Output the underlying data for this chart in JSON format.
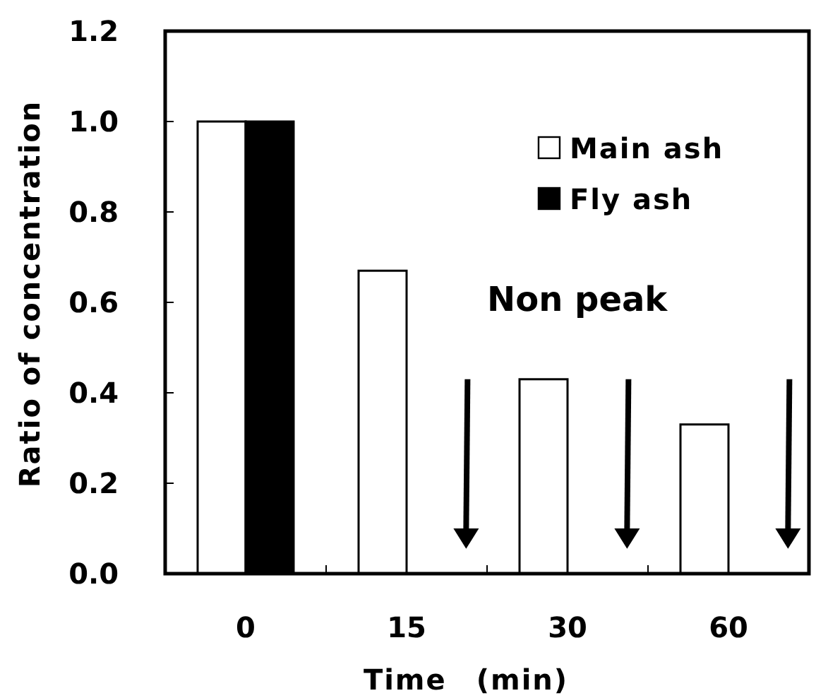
{
  "chart_data": {
    "type": "bar",
    "xlabel": "Time　(min)",
    "ylabel": "Ratio of concentration",
    "categories": [
      "0",
      "15",
      "30",
      "60"
    ],
    "series": [
      {
        "name": "Main ash",
        "color": "#ffffff",
        "values": [
          1.0,
          0.67,
          0.43,
          0.33
        ]
      },
      {
        "name": "Fly ash",
        "color": "#000000",
        "values": [
          1.0,
          null,
          null,
          null
        ]
      }
    ],
    "ylim": [
      0,
      1.2
    ],
    "yticks": [
      {
        "value": 0,
        "label": "0.0"
      },
      {
        "value": 0.2,
        "label": "0.2"
      },
      {
        "value": 0.4,
        "label": "0.4"
      },
      {
        "value": 0.6,
        "label": "0.6"
      },
      {
        "value": 0.8,
        "label": "0.8"
      },
      {
        "value": 1,
        "label": "1.0"
      },
      {
        "value": 1.2,
        "label": "1.2"
      }
    ],
    "grid": false,
    "legend": "top right",
    "annotations": [
      "Non peak"
    ]
  }
}
